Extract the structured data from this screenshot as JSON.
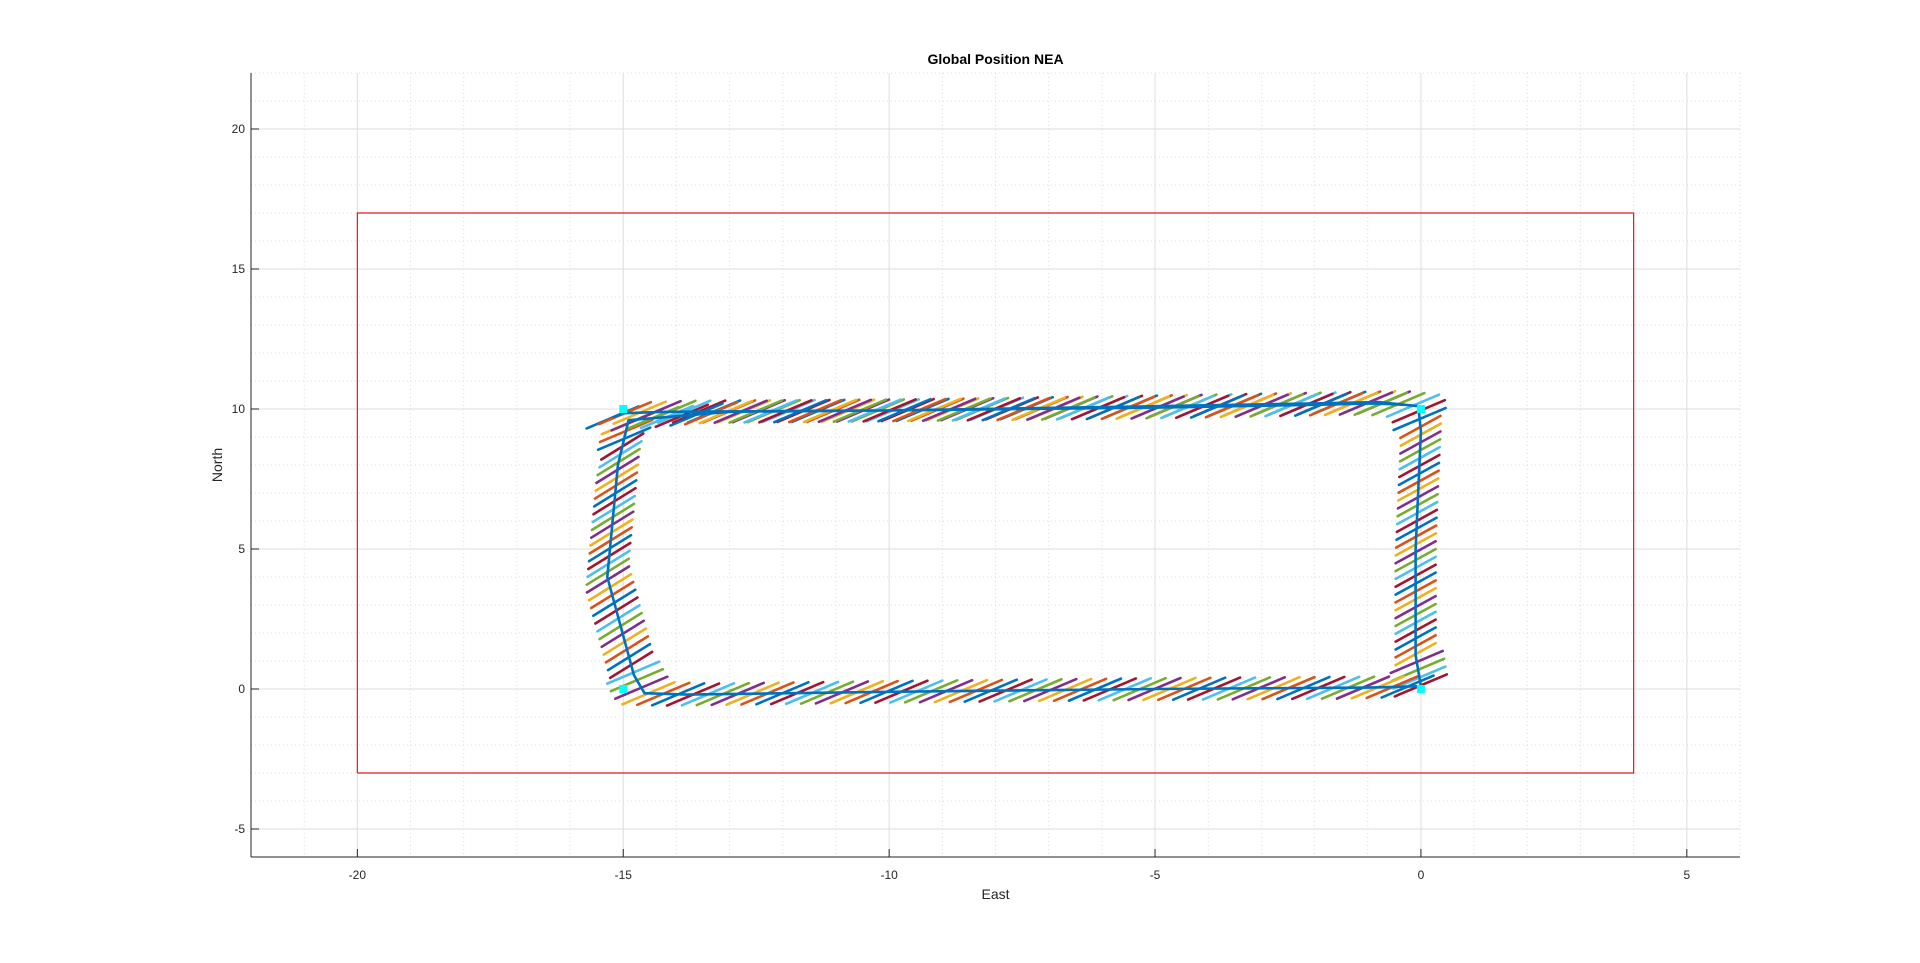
{
  "chart_data": {
    "type": "line",
    "title": "Global Position NEA",
    "xlabel": "East",
    "ylabel": "North",
    "xlim": [
      -22,
      6
    ],
    "ylim": [
      -6,
      22
    ],
    "x_ticks": [
      -20,
      -15,
      -10,
      -5,
      0,
      5
    ],
    "y_ticks": [
      -5,
      0,
      5,
      10,
      15,
      20
    ],
    "grid": true,
    "minor_grid": true,
    "minor_step": 1,
    "boundary": {
      "color": "#e8171e",
      "x": [
        -20,
        4,
        4,
        -20,
        -20
      ],
      "y": [
        -3,
        -3,
        17,
        17,
        -3
      ]
    },
    "waypoints": {
      "color": "#00ffff",
      "x": [
        -15,
        0,
        0,
        -15
      ],
      "y": [
        10,
        10,
        0,
        0
      ]
    },
    "trajectory": {
      "color": "#0072bd",
      "x": [
        -15.2,
        -15.0,
        -14.2,
        -10.0,
        -5.0,
        -2.0,
        -0.8,
        -0.05,
        0.0,
        -0.1,
        -0.1,
        0.0,
        -1.0,
        -5.0,
        -10.0,
        -13.8,
        -14.6,
        -14.8,
        -15.3,
        -15.1,
        -14.9,
        -13.0,
        -10.0,
        -5.0,
        -2.0,
        -0.9,
        -0.3
      ],
      "y": [
        9.7,
        9.85,
        9.9,
        9.95,
        10.1,
        10.2,
        10.25,
        10.1,
        9.2,
        5.0,
        1.2,
        0.1,
        0.05,
        0.0,
        -0.1,
        -0.2,
        -0.15,
        0.5,
        4.0,
        8.0,
        9.6,
        9.9,
        9.95,
        10.05,
        10.15,
        10.2,
        10.15
      ]
    },
    "heading_colors": [
      "#0072bd",
      "#d95319",
      "#edb120",
      "#7e2f8e",
      "#77ac30",
      "#4dbeee",
      "#a2142f"
    ]
  }
}
